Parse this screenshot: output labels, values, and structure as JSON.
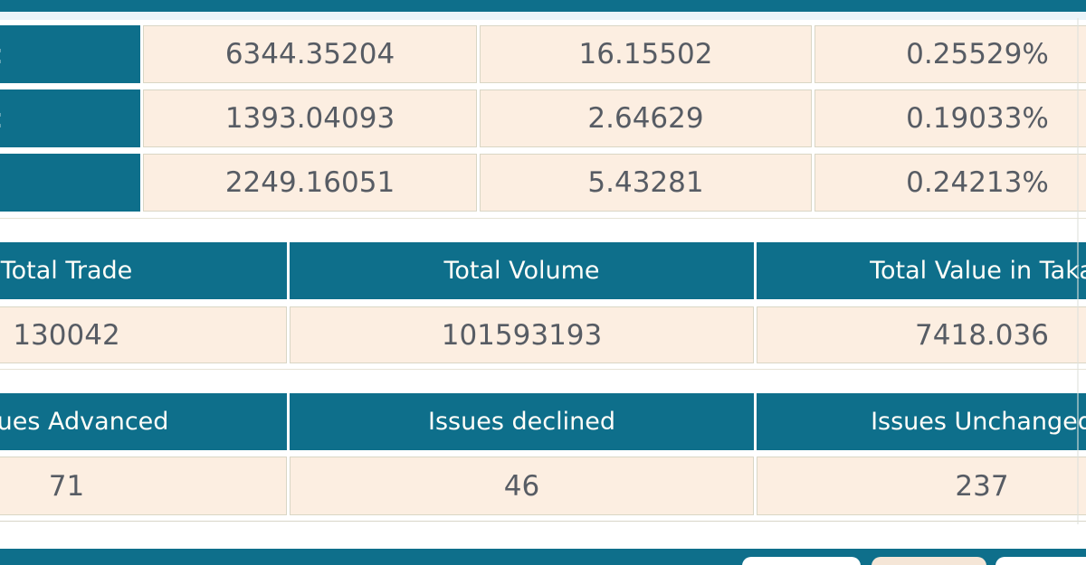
{
  "colors": {
    "teal_header": "#0e6f8b",
    "cell_background": "#fceee1",
    "cell_border": "#d9d6c5",
    "value_text": "#575c64",
    "header_text": "#fffef9",
    "top_band": "#e9f4f9"
  },
  "index_table": {
    "rows": [
      {
        "label_remnant": ":",
        "values": [
          "6344.35204",
          "16.15502",
          "0.25529%"
        ]
      },
      {
        "label_remnant": ":",
        "values": [
          "1393.04093",
          "2.64629",
          "0.19033%"
        ]
      },
      {
        "label_remnant": "",
        "values": [
          "2249.16051",
          "5.43281",
          "0.24213%"
        ]
      }
    ]
  },
  "totals_table": {
    "headers": [
      "Total Trade",
      "Total Volume",
      "Total Value in Taka"
    ],
    "values": [
      "130042",
      "101593193",
      "7418.036"
    ]
  },
  "issues_table": {
    "headers": [
      "Issues Advanced",
      "Issues declined",
      "Issues Unchanged"
    ],
    "values": [
      "71",
      "46",
      "237"
    ]
  },
  "bottom_bar": {
    "buttons": [
      {
        "label": ""
      },
      {
        "label": ""
      },
      {
        "label": ""
      }
    ]
  }
}
